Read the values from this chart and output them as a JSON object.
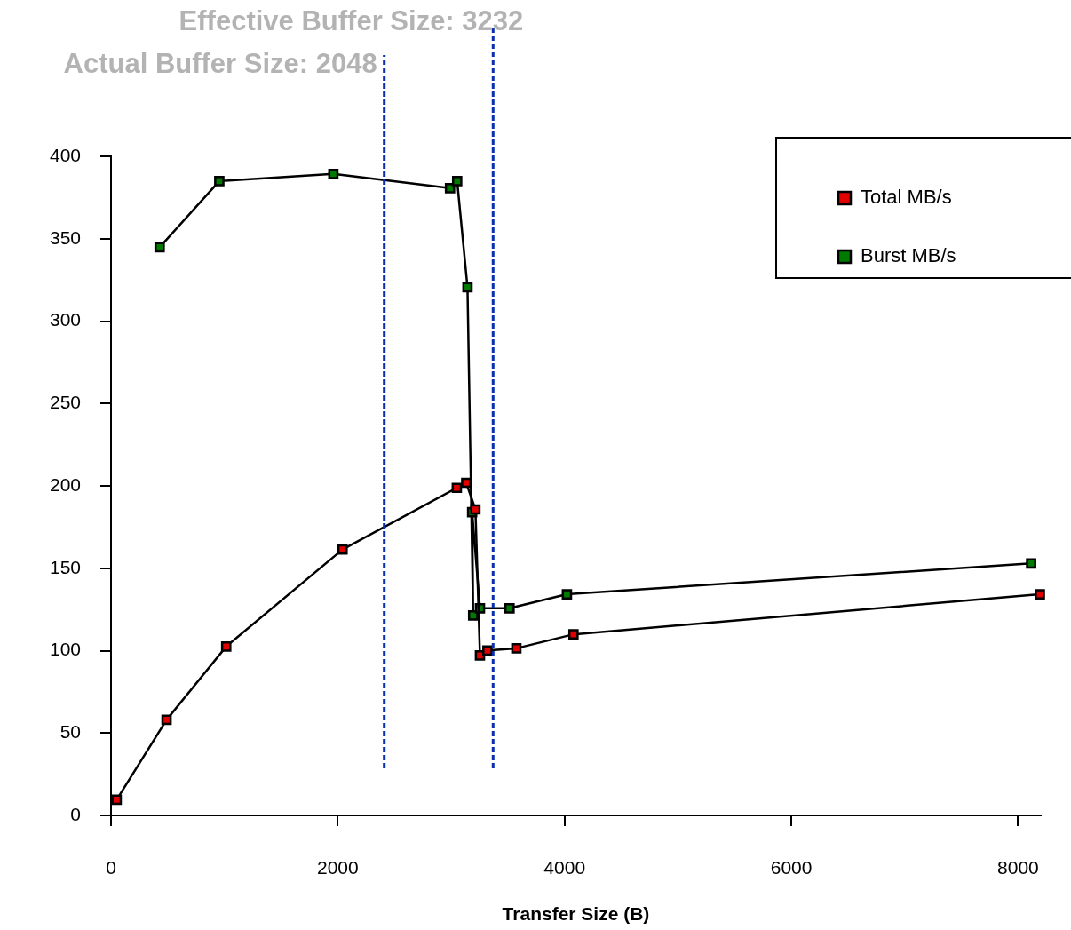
{
  "chart_data": {
    "type": "line",
    "xlabel": "Transfer Size (B)",
    "xlim": [
      0,
      8200
    ],
    "xticks": [
      0,
      2000,
      4000,
      6000,
      8000
    ],
    "ylim": [
      0,
      400
    ],
    "yticks": [
      0,
      50,
      100,
      150,
      200,
      250,
      300,
      350,
      400
    ],
    "grid": false,
    "legend": "top right",
    "marker": "square",
    "line_style": "solid",
    "series": [
      {
        "name": "Total MB/s",
        "color": "#e00000",
        "x": [
          50,
          490,
          1016,
          2042,
          3050,
          3133,
          3214,
          3254,
          3320,
          3575,
          4079,
          8192
        ],
        "values": [
          9.5,
          58,
          102.5,
          161.4,
          198.8,
          201.9,
          185.7,
          97.1,
          100.1,
          101.4,
          109.9,
          134.2
        ]
      },
      {
        "name": "Burst MB/s",
        "color": "#007a00",
        "x": [
          429,
          955,
          1961,
          2990,
          3053,
          3144,
          3194,
          3185,
          3254,
          3515,
          4021,
          8115
        ],
        "values": [
          344.8,
          385,
          389.3,
          380.7,
          385,
          320.6,
          121.4,
          184,
          125.7,
          125.7,
          134.2,
          152.9
        ]
      }
    ],
    "ref_lines": [
      {
        "axis": "x",
        "value": 2410,
        "color": "#0a2fb0",
        "line_style": "dashed"
      },
      {
        "axis": "x",
        "value": 3370,
        "color": "#0a2fb0",
        "line_style": "dashed"
      }
    ],
    "annotations": [
      "Actual Buffer Size: 2048",
      "Effective Buffer Size: 3232"
    ]
  }
}
